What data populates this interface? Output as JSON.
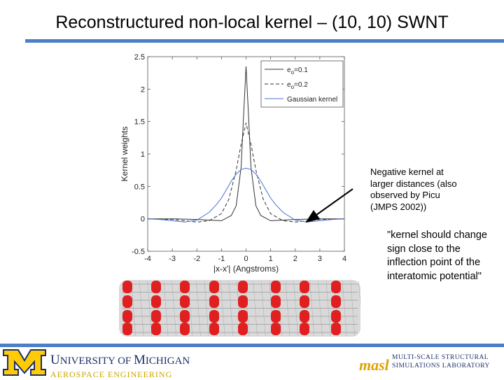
{
  "title": "Reconstructured non-local kernel – (10, 10) SWNT",
  "chart_data": {
    "type": "line",
    "xlabel": "|x-x'| (Angstroms)",
    "ylabel": "Kernel weights",
    "xlim": [
      -4,
      4
    ],
    "ylim": [
      -0.5,
      2.5
    ],
    "xticks": [
      "-4",
      "-3",
      "-2",
      "-1",
      "0",
      "1",
      "2",
      "3",
      "4"
    ],
    "yticks": [
      "-0.5",
      "0",
      "0.5",
      "1",
      "1.5",
      "2",
      "2.5"
    ],
    "legend_position": "top-right",
    "series": [
      {
        "name_prefix": "e",
        "name_sub": "o",
        "name_suffix": "=0.1",
        "style": "solid",
        "color": "#333333",
        "x": [
          -4,
          -3,
          -2,
          -1.5,
          -1,
          -0.6,
          -0.4,
          -0.2,
          -0.1,
          0,
          0.1,
          0.2,
          0.4,
          0.6,
          1,
          1.5,
          2,
          3,
          4
        ],
        "y": [
          0,
          0,
          -0.01,
          -0.02,
          -0.03,
          0.05,
          0.2,
          0.8,
          1.6,
          2.35,
          1.6,
          0.8,
          0.2,
          0.05,
          -0.03,
          -0.02,
          -0.01,
          0,
          0
        ]
      },
      {
        "name_prefix": "e",
        "name_sub": "o",
        "name_suffix": "=0.2",
        "style": "dashed",
        "color": "#333333",
        "x": [
          -4,
          -3,
          -2.5,
          -2,
          -1.5,
          -1,
          -0.7,
          -0.4,
          -0.2,
          0,
          0.2,
          0.4,
          0.7,
          1,
          1.5,
          2,
          2.5,
          3,
          4
        ],
        "y": [
          0,
          -0.01,
          -0.03,
          -0.05,
          -0.03,
          0.08,
          0.3,
          0.75,
          1.15,
          1.48,
          1.15,
          0.75,
          0.3,
          0.08,
          -0.03,
          -0.05,
          -0.03,
          -0.01,
          0
        ]
      },
      {
        "name": "Gaussian kernel",
        "style": "solid",
        "color": "#4a6fd0",
        "x": [
          -4,
          -3.5,
          -3,
          -2.5,
          -2,
          -1.5,
          -1.2,
          -1,
          -0.8,
          -0.6,
          -0.4,
          -0.2,
          0,
          0.2,
          0.4,
          0.6,
          0.8,
          1,
          1.2,
          1.5,
          2,
          2.5,
          3,
          3.5,
          4
        ],
        "y": [
          0,
          -0.01,
          -0.03,
          -0.05,
          -0.02,
          0.1,
          0.22,
          0.32,
          0.45,
          0.58,
          0.69,
          0.76,
          0.78,
          0.76,
          0.69,
          0.58,
          0.45,
          0.32,
          0.22,
          0.1,
          -0.02,
          -0.05,
          -0.03,
          -0.01,
          0
        ]
      }
    ]
  },
  "annotation_1": [
    "Negative kernel at",
    "larger distances (also",
    "observed by Picu",
    "(JMPS 2002))"
  ],
  "annotation_2": [
    "\"kernel should change",
    "sign close to the",
    "inflection point of the",
    "interatomic potential\""
  ],
  "colors": {
    "accent_bar": "#4a7fc8",
    "um_blue": "#1c2f6b",
    "um_maize": "#ffcb05",
    "atom_red": "#e02020"
  },
  "footer": {
    "um_line1_initial": "U",
    "um_line1_rest": "NIVERSITY OF ",
    "um_line1_initial2": "M",
    "um_line1_rest2": "ICHIGAN",
    "um_line2": "AEROSPACE ENGINEERING",
    "lab_logo": "masl",
    "lab_line1": "MULTI-SCALE STRUCTURAL",
    "lab_line2": "SIMULATIONS LABORATORY"
  }
}
